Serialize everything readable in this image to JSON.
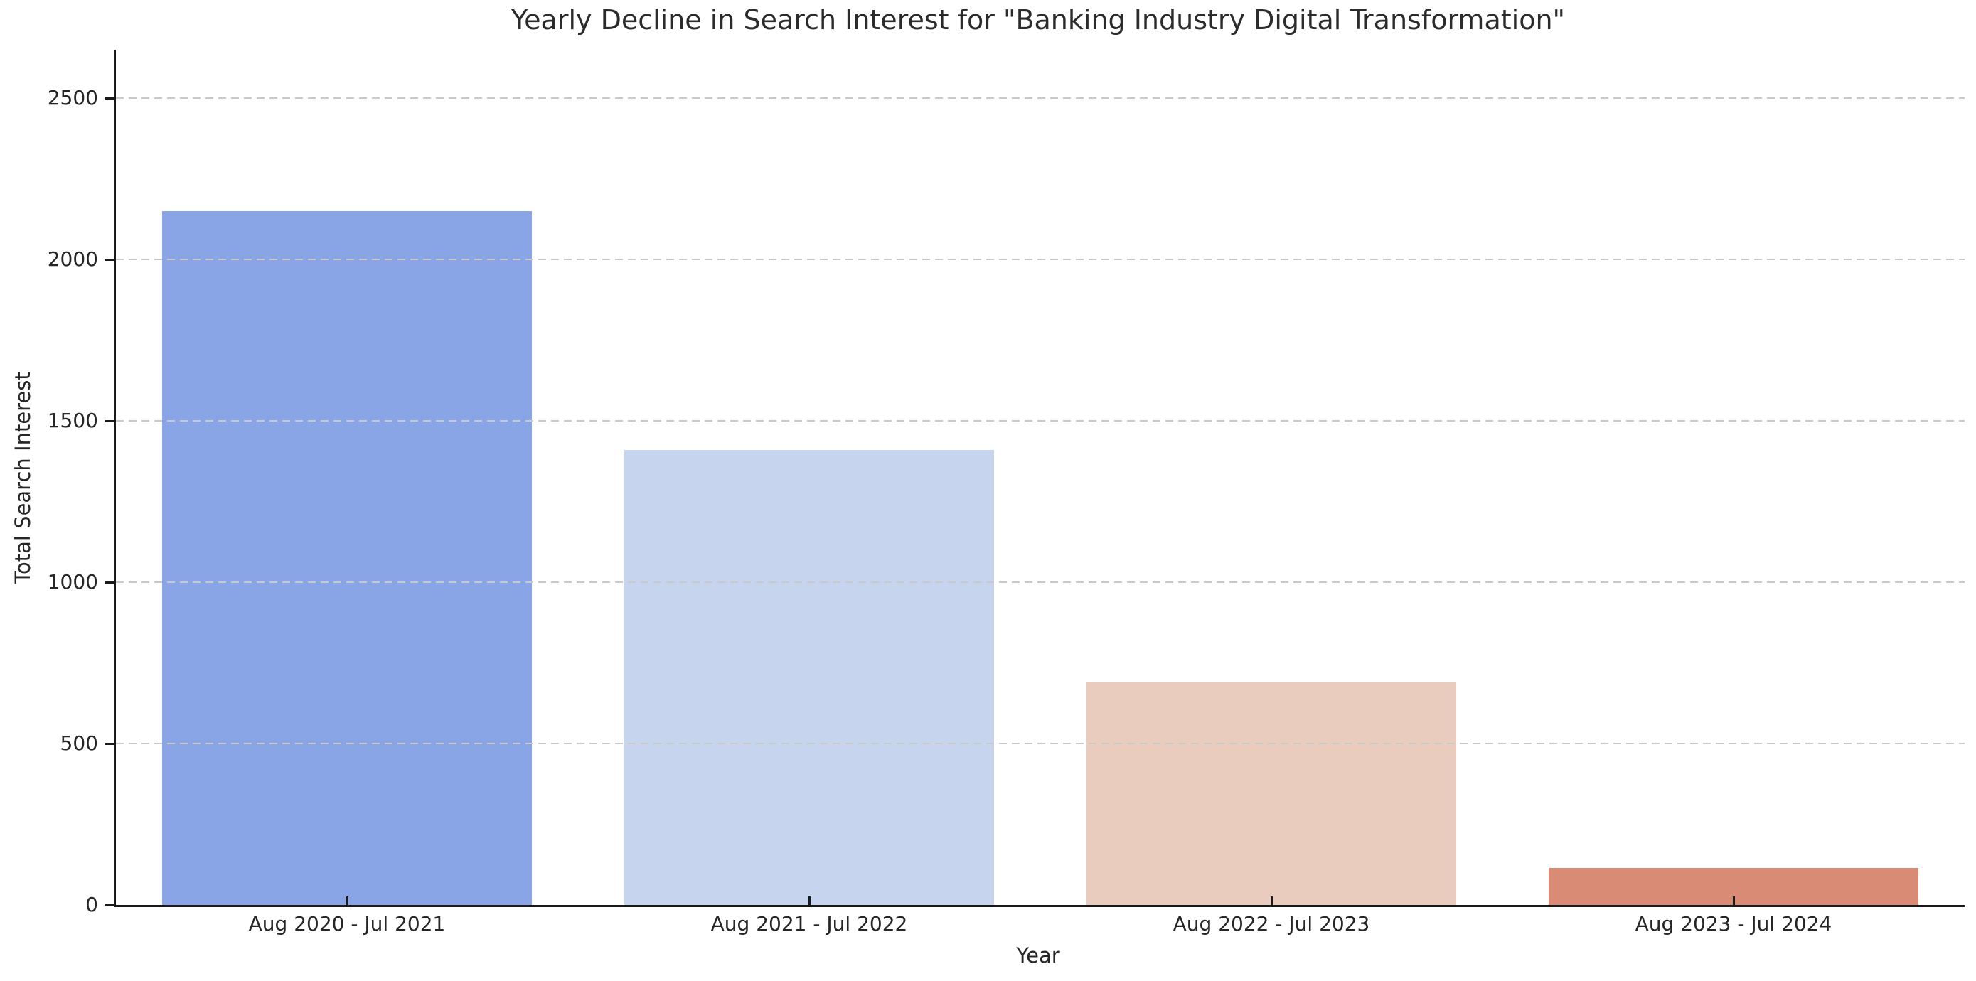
{
  "chart_data": {
    "type": "bar",
    "title": "Yearly Decline in Search Interest for \"Banking Industry Digital Transformation\"",
    "xlabel": "Year",
    "ylabel": "Total Search Interest",
    "categories": [
      "Aug 2020 - Jul 2021",
      "Aug 2021 - Jul 2022",
      "Aug 2022 - Jul 2023",
      "Aug 2023 - Jul 2024"
    ],
    "values": [
      2150,
      1410,
      690,
      115
    ],
    "bar_colors": [
      "#8aa5e6",
      "#c6d4ee",
      "#eaccbe",
      "#da8b75"
    ],
    "ylim": [
      0,
      2650
    ],
    "yticks": [
      0,
      500,
      1000,
      1500,
      2000,
      2500
    ],
    "grid": "horizontal-dashed",
    "grid_color": "#c9c9c9",
    "axis_color": "#1a1a1a",
    "text_color": "#262626",
    "background": "#ffffff",
    "legend": "none"
  }
}
